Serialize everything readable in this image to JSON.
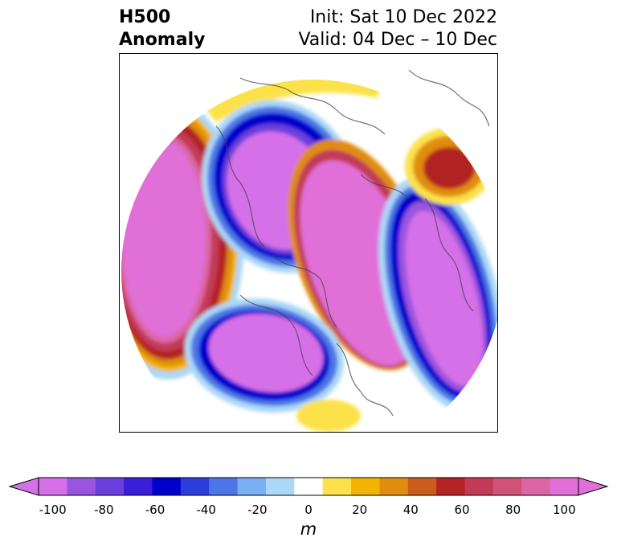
{
  "title": {
    "left_line1": "H500",
    "left_line2": "Anomaly",
    "right_line1": "Init: Sat 10 Dec 2022",
    "right_line2": "Valid: 04 Dec – 10 Dec"
  },
  "colorbar": {
    "units": "m",
    "ticks": [
      "-100",
      "-80",
      "-60",
      "-40",
      "-20",
      "0",
      "20",
      "40",
      "60",
      "80",
      "100"
    ],
    "colors": [
      "#d670e8",
      "#9a55e0",
      "#6b3fdc",
      "#3a1ed8",
      "#0000cc",
      "#2b3fd8",
      "#4c76e6",
      "#7ab0f2",
      "#acd8f7",
      "#ffffff",
      "#fce24a",
      "#f2b400",
      "#e08d0e",
      "#c85e1a",
      "#b32424",
      "#c23b56",
      "#cf5379",
      "#db66a5",
      "#e06fd7"
    ],
    "over_color": "#e06fd7",
    "under_color": "#d670e8"
  }
}
